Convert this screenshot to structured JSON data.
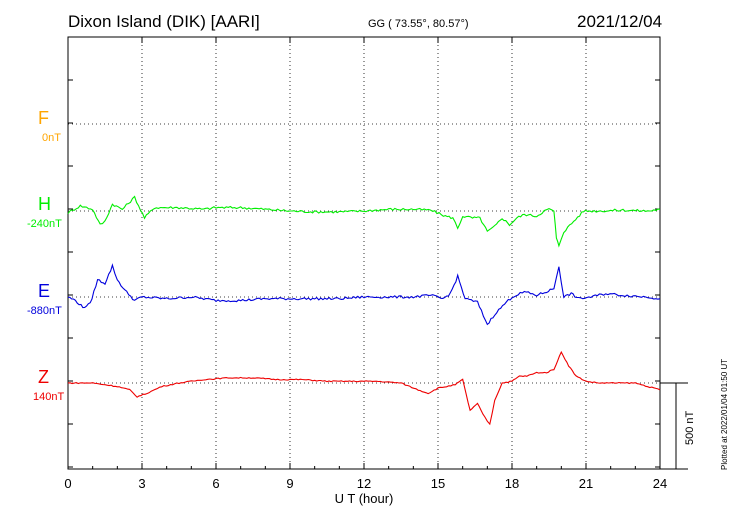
{
  "header": {
    "title": "Dixon Island (DIK)  [AARI]",
    "coords": "GG ( 73.55°,  80.57°)",
    "date": "2021/12/04"
  },
  "components": [
    {
      "key": "F",
      "label": "F",
      "baseline": "0nT",
      "color": "#ffa500"
    },
    {
      "key": "H",
      "label": "H",
      "baseline": "-240nT",
      "color": "#00ee00"
    },
    {
      "key": "E",
      "label": "E",
      "baseline": "-880nT",
      "color": "#0000dd"
    },
    {
      "key": "Z",
      "label": "Z",
      "baseline": "140nT",
      "color": "#ee0000"
    }
  ],
  "footer": {
    "plotted": "Plotted at 2022/01/04 01:50 UT",
    "scale_label": "500 nT"
  },
  "chart_data": {
    "type": "line",
    "xlabel": "U T (hour)",
    "xlim": [
      0,
      24
    ],
    "xticks": [
      "0",
      "3",
      "6",
      "9",
      "12",
      "15",
      "18",
      "21",
      "24"
    ],
    "ylabel": "",
    "scale_bar_nT": 500,
    "grid": true,
    "series": [
      {
        "name": "F",
        "unit": "nT",
        "baseline": 0,
        "points": []
      },
      {
        "name": "H",
        "unit": "nT",
        "baseline": -240,
        "points": [
          [
            0,
            -10
          ],
          [
            0.5,
            30
          ],
          [
            1,
            10
          ],
          [
            1.3,
            -80
          ],
          [
            1.5,
            -60
          ],
          [
            1.8,
            40
          ],
          [
            2.2,
            10
          ],
          [
            2.7,
            80
          ],
          [
            3.1,
            -40
          ],
          [
            3.5,
            20
          ],
          [
            4.5,
            20
          ],
          [
            5.5,
            10
          ],
          [
            6,
            20
          ],
          [
            7,
            20
          ],
          [
            8,
            10
          ],
          [
            9,
            0
          ],
          [
            10,
            -5
          ],
          [
            11,
            -5
          ],
          [
            12,
            0
          ],
          [
            13,
            10
          ],
          [
            14,
            10
          ],
          [
            14.7,
            5
          ],
          [
            15.3,
            -30
          ],
          [
            15.6,
            -40
          ],
          [
            15.8,
            -100
          ],
          [
            16,
            -30
          ],
          [
            16.4,
            -40
          ],
          [
            16.7,
            -40
          ],
          [
            17,
            -120
          ],
          [
            17.3,
            -90
          ],
          [
            17.6,
            -40
          ],
          [
            17.9,
            -80
          ],
          [
            18.2,
            -40
          ],
          [
            18.5,
            -20
          ],
          [
            19,
            -30
          ],
          [
            19.3,
            0
          ],
          [
            19.5,
            10
          ],
          [
            19.7,
            0
          ],
          [
            19.8,
            -160
          ],
          [
            19.9,
            -200
          ],
          [
            20.1,
            -120
          ],
          [
            20.5,
            -60
          ],
          [
            20.9,
            0
          ],
          [
            21.5,
            0
          ],
          [
            22.5,
            5
          ],
          [
            23.5,
            0
          ],
          [
            24,
            10
          ]
        ]
      },
      {
        "name": "E",
        "unit": "nT",
        "baseline": -880,
        "points": [
          [
            0,
            0
          ],
          [
            0.3,
            -20
          ],
          [
            0.6,
            -60
          ],
          [
            0.9,
            -40
          ],
          [
            1.2,
            100
          ],
          [
            1.5,
            80
          ],
          [
            1.8,
            180
          ],
          [
            2,
            100
          ],
          [
            2.3,
            40
          ],
          [
            2.7,
            -20
          ],
          [
            3,
            0
          ],
          [
            4,
            -10
          ],
          [
            5,
            0
          ],
          [
            6,
            -20
          ],
          [
            7,
            -20
          ],
          [
            8,
            -10
          ],
          [
            9,
            -10
          ],
          [
            10,
            -10
          ],
          [
            11,
            -10
          ],
          [
            12,
            0
          ],
          [
            13,
            0
          ],
          [
            14,
            0
          ],
          [
            14.7,
            10
          ],
          [
            15.2,
            -10
          ],
          [
            15.5,
            20
          ],
          [
            15.8,
            120
          ],
          [
            16.1,
            -10
          ],
          [
            16.6,
            -30
          ],
          [
            17,
            -160
          ],
          [
            17.3,
            -100
          ],
          [
            17.7,
            -40
          ],
          [
            18,
            0
          ],
          [
            18.5,
            30
          ],
          [
            19,
            10
          ],
          [
            19.4,
            30
          ],
          [
            19.7,
            50
          ],
          [
            19.9,
            180
          ],
          [
            20.1,
            0
          ],
          [
            20.4,
            20
          ],
          [
            20.7,
            -10
          ],
          [
            21.2,
            0
          ],
          [
            21.8,
            20
          ],
          [
            22.5,
            10
          ],
          [
            23.5,
            0
          ],
          [
            24,
            -10
          ]
        ]
      },
      {
        "name": "Z",
        "unit": "nT",
        "baseline": 140,
        "points": [
          [
            0,
            0
          ],
          [
            1,
            0
          ],
          [
            1.5,
            -10
          ],
          [
            2,
            -20
          ],
          [
            2.5,
            -40
          ],
          [
            2.8,
            -80
          ],
          [
            3.2,
            -60
          ],
          [
            3.8,
            -20
          ],
          [
            4.5,
            0
          ],
          [
            5.5,
            20
          ],
          [
            6.5,
            30
          ],
          [
            7.5,
            30
          ],
          [
            8.5,
            20
          ],
          [
            9.5,
            20
          ],
          [
            10.5,
            10
          ],
          [
            11.5,
            10
          ],
          [
            12.5,
            10
          ],
          [
            13.5,
            0
          ],
          [
            14.2,
            -40
          ],
          [
            14.6,
            -60
          ],
          [
            15,
            -30
          ],
          [
            15.7,
            -10
          ],
          [
            16,
            20
          ],
          [
            16.3,
            -160
          ],
          [
            16.6,
            -120
          ],
          [
            16.9,
            -200
          ],
          [
            17.1,
            -240
          ],
          [
            17.3,
            -100
          ],
          [
            17.6,
            0
          ],
          [
            18,
            10
          ],
          [
            18.3,
            40
          ],
          [
            18.6,
            40
          ],
          [
            19,
            60
          ],
          [
            19.4,
            60
          ],
          [
            19.7,
            80
          ],
          [
            20,
            180
          ],
          [
            20.3,
            100
          ],
          [
            20.6,
            40
          ],
          [
            21,
            10
          ],
          [
            21.5,
            0
          ],
          [
            22,
            0
          ],
          [
            23,
            0
          ],
          [
            23.5,
            -20
          ],
          [
            24,
            -40
          ]
        ]
      }
    ]
  }
}
